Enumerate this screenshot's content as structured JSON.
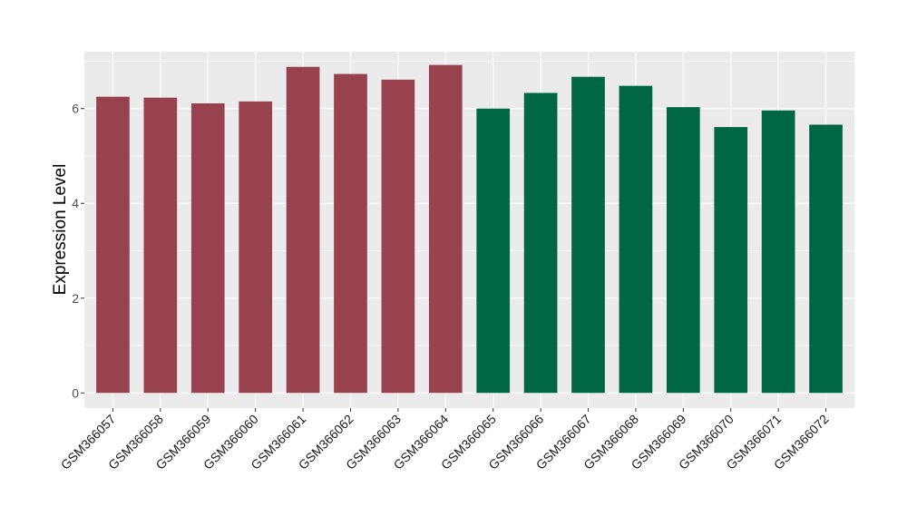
{
  "chart_data": {
    "type": "bar",
    "ylabel": "Expression Level",
    "xlabel": "",
    "ylim": [
      -0.32,
      7.2
    ],
    "yticks": [
      0,
      2,
      4,
      6
    ],
    "grid": true,
    "categories": [
      "GSM366057",
      "GSM366058",
      "GSM366059",
      "GSM366060",
      "GSM366061",
      "GSM366062",
      "GSM366063",
      "GSM366064",
      "GSM366065",
      "GSM366066",
      "GSM366067",
      "GSM366068",
      "GSM366069",
      "GSM366070",
      "GSM366071",
      "GSM366072"
    ],
    "values": [
      6.25,
      6.23,
      6.11,
      6.15,
      6.88,
      6.73,
      6.61,
      6.92,
      6.0,
      6.33,
      6.67,
      6.48,
      6.03,
      5.61,
      5.96,
      5.66
    ],
    "groups": [
      0,
      0,
      0,
      0,
      0,
      0,
      0,
      0,
      1,
      1,
      1,
      1,
      1,
      1,
      1,
      1
    ],
    "group_colors": [
      "#98414F",
      "#006746"
    ],
    "panel_color": "#EBEBEB",
    "grid_color": "#FFFFFF"
  }
}
